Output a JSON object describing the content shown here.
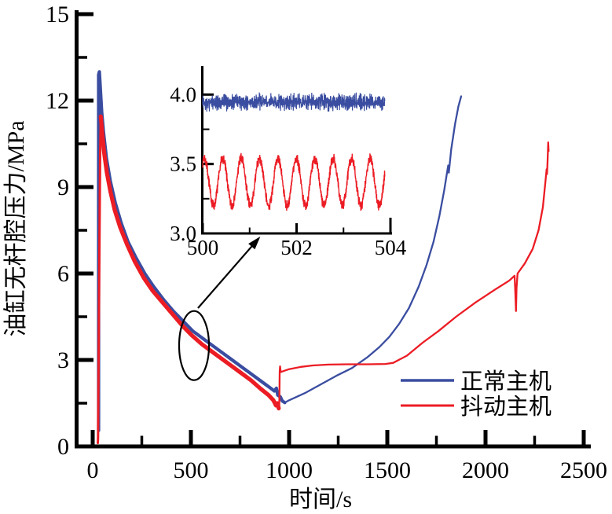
{
  "chart_data": {
    "type": "line",
    "title": "",
    "main": {
      "xlabel": "时间/s",
      "ylabel": "油缸无杆腔压力/MPa",
      "xlim": [
        0,
        2530
      ],
      "ylim": [
        0,
        15.2
      ],
      "x_major_ticks": [
        0,
        500,
        1000,
        1500,
        2000,
        2500
      ],
      "x_minor_ticks": [
        250,
        750,
        1250,
        1750,
        2250
      ],
      "y_major_ticks": [
        0,
        3,
        6,
        9,
        12,
        15
      ],
      "y_minor_ticks": [
        1.5,
        4.5,
        7.5,
        10.5,
        13.5
      ],
      "grid": false,
      "spines": [
        "left",
        "bottom"
      ]
    },
    "series": [
      {
        "name": "正常主机",
        "color": "#3A4DA0",
        "segments": [
          {
            "width": 4.2,
            "points": [
              [
                30,
                0.55
              ],
              [
                30,
                12.9
              ],
              [
                34,
                13.0
              ],
              [
                40,
                12.3
              ],
              [
                46,
                11.6
              ],
              [
                55,
                10.9
              ],
              [
                70,
                10.0
              ],
              [
                90,
                9.2
              ],
              [
                115,
                8.45
              ],
              [
                145,
                7.75
              ],
              [
                180,
                7.1
              ],
              [
                220,
                6.55
              ],
              [
                265,
                6.0
              ],
              [
                310,
                5.55
              ],
              [
                360,
                5.1
              ],
              [
                410,
                4.7
              ],
              [
                460,
                4.35
              ],
              [
                510,
                4.0
              ],
              [
                560,
                3.75
              ],
              [
                610,
                3.5
              ],
              [
                660,
                3.25
              ],
              [
                710,
                3.0
              ],
              [
                760,
                2.75
              ],
              [
                810,
                2.5
              ],
              [
                860,
                2.25
              ],
              [
                900,
                2.05
              ],
              [
                925,
                1.92
              ],
              [
                935,
                2.02
              ],
              [
                942,
                1.78
              ],
              [
                955,
                1.72
              ],
              [
                965,
                1.58
              ],
              [
                978,
                1.52
              ]
            ]
          },
          {
            "width": 2.3,
            "points": [
              [
                978,
                1.52
              ],
              [
                1000,
                1.6
              ],
              [
                1080,
                1.85
              ],
              [
                1160,
                2.15
              ],
              [
                1240,
                2.45
              ],
              [
                1320,
                2.72
              ],
              [
                1400,
                3.1
              ],
              [
                1460,
                3.45
              ],
              [
                1510,
                3.8
              ],
              [
                1560,
                4.25
              ],
              [
                1610,
                4.8
              ],
              [
                1660,
                5.55
              ],
              [
                1700,
                6.3
              ],
              [
                1735,
                7.1
              ],
              [
                1765,
                8.0
              ],
              [
                1790,
                8.9
              ],
              [
                1805,
                9.55
              ],
              [
                1810,
                9.75
              ],
              [
                1813,
                9.5
              ],
              [
                1825,
                10.3
              ],
              [
                1845,
                11.2
              ],
              [
                1862,
                11.8
              ],
              [
                1876,
                12.15
              ]
            ]
          }
        ]
      },
      {
        "name": "抖动主机",
        "color": "#EC1C24",
        "segments": [
          {
            "width": 3.0,
            "points": [
              [
                26,
                0.12
              ],
              [
                27,
                0.3
              ],
              [
                33,
                6.0
              ],
              [
                38,
                10.2
              ],
              [
                41,
                11.45
              ]
            ]
          },
          {
            "width": 5.2,
            "points": [
              [
                41,
                11.45
              ],
              [
                48,
                10.9
              ],
              [
                58,
                10.2
              ],
              [
                72,
                9.5
              ],
              [
                90,
                8.85
              ],
              [
                112,
                8.2
              ],
              [
                140,
                7.6
              ],
              [
                175,
                7.0
              ],
              [
                215,
                6.4
              ],
              [
                260,
                5.85
              ],
              [
                305,
                5.4
              ],
              [
                355,
                5.0
              ],
              [
                405,
                4.6
              ],
              [
                455,
                4.2
              ],
              [
                505,
                3.85
              ],
              [
                555,
                3.55
              ],
              [
                605,
                3.3
              ],
              [
                655,
                3.05
              ],
              [
                705,
                2.8
              ],
              [
                755,
                2.55
              ],
              [
                805,
                2.3
              ],
              [
                855,
                2.0
              ],
              [
                895,
                1.78
              ],
              [
                920,
                1.6
              ],
              [
                933,
                1.42
              ],
              [
                940,
                1.5
              ],
              [
                947,
                1.32
              ]
            ]
          },
          {
            "width": 2.3,
            "points": [
              [
                947,
                1.32
              ],
              [
                950,
                1.38
              ],
              [
                952,
                2.6
              ],
              [
                954,
                2.78
              ],
              [
                957,
                2.58
              ],
              [
                965,
                2.6
              ],
              [
                1000,
                2.68
              ],
              [
                1060,
                2.76
              ],
              [
                1120,
                2.81
              ],
              [
                1200,
                2.84
              ],
              [
                1300,
                2.85
              ],
              [
                1400,
                2.85
              ],
              [
                1490,
                2.86
              ],
              [
                1530,
                2.9
              ],
              [
                1600,
                3.15
              ],
              [
                1680,
                3.6
              ],
              [
                1760,
                4.0
              ],
              [
                1850,
                4.5
              ],
              [
                1950,
                5.0
              ],
              [
                2050,
                5.45
              ],
              [
                2120,
                5.75
              ],
              [
                2148,
                5.92
              ],
              [
                2152,
                5.3
              ],
              [
                2155,
                4.7
              ],
              [
                2158,
                5.5
              ],
              [
                2163,
                6.0
              ],
              [
                2200,
                6.35
              ],
              [
                2240,
                6.85
              ],
              [
                2270,
                7.5
              ],
              [
                2292,
                8.3
              ],
              [
                2305,
                9.2
              ],
              [
                2311,
                9.62
              ],
              [
                2313,
                9.45
              ],
              [
                2316,
                9.9
              ],
              [
                2319,
                10.55
              ],
              [
                2321,
                10.25
              ]
            ]
          }
        ]
      }
    ],
    "inset": {
      "xlim": [
        500,
        504
      ],
      "ylim": [
        3.0,
        4.2
      ],
      "x_major_ticks": [
        500,
        502,
        504
      ],
      "x_minor_ticks": [
        501,
        503
      ],
      "y_major_ticks": [
        3.0,
        3.5,
        4.0
      ],
      "y_minor_ticks": [
        3.25,
        3.75
      ],
      "x_tick_labels": [
        "500",
        "502",
        "504"
      ],
      "y_tick_labels": [
        "3.0",
        "3.5",
        "4.0"
      ],
      "blue_band": {
        "center": 3.945,
        "amplitude": 0.05
      },
      "red_wave": {
        "center": 3.37,
        "amplitude": 0.17,
        "cycles_per_s": 2.55,
        "jitter": 0.05
      }
    },
    "legend": {
      "entries": [
        "正常主机",
        "抖动主机"
      ],
      "position": "lower-right"
    },
    "annotation": {
      "ellipse": {
        "cx_s": 516,
        "cy_mpa": 3.5,
        "rx_s": 76,
        "ry_mpa": 1.2
      },
      "arrow": {
        "from": [
          536,
          4.8
        ],
        "to": [
          830,
          7.1
        ]
      }
    }
  }
}
